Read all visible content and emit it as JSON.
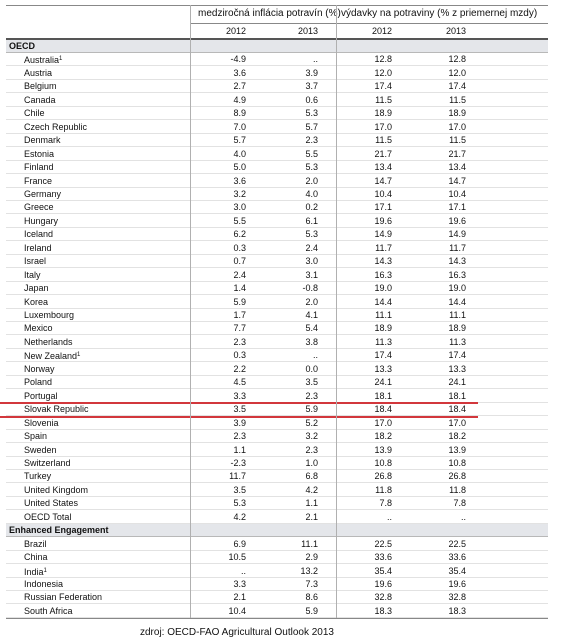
{
  "header": {
    "groups": [
      "medziročná inflácia potravín (%)",
      "výdavky na potraviny (% z priemernej mzdy)"
    ],
    "years": [
      "2012",
      "2013",
      "2012",
      "2013"
    ]
  },
  "sections": [
    {
      "title": "OECD",
      "rows": [
        {
          "name": "Australia",
          "sup": "1",
          "values": [
            "-4.9",
            "..",
            "12.8",
            "12.8"
          ]
        },
        {
          "name": "Austria",
          "values": [
            "3.6",
            "3.9",
            "12.0",
            "12.0"
          ]
        },
        {
          "name": "Belgium",
          "values": [
            "2.7",
            "3.7",
            "17.4",
            "17.4"
          ]
        },
        {
          "name": "Canada",
          "values": [
            "4.9",
            "0.6",
            "11.5",
            "11.5"
          ]
        },
        {
          "name": "Chile",
          "values": [
            "8.9",
            "5.3",
            "18.9",
            "18.9"
          ]
        },
        {
          "name": "Czech Republic",
          "values": [
            "7.0",
            "5.7",
            "17.0",
            "17.0"
          ]
        },
        {
          "name": "Denmark",
          "values": [
            "5.7",
            "2.3",
            "11.5",
            "11.5"
          ]
        },
        {
          "name": "Estonia",
          "values": [
            "4.0",
            "5.5",
            "21.7",
            "21.7"
          ]
        },
        {
          "name": "Finland",
          "values": [
            "5.0",
            "5.3",
            "13.4",
            "13.4"
          ]
        },
        {
          "name": "France",
          "values": [
            "3.6",
            "2.0",
            "14.7",
            "14.7"
          ]
        },
        {
          "name": "Germany",
          "values": [
            "3.2",
            "4.0",
            "10.4",
            "10.4"
          ]
        },
        {
          "name": "Greece",
          "values": [
            "3.0",
            "0.2",
            "17.1",
            "17.1"
          ]
        },
        {
          "name": "Hungary",
          "values": [
            "5.5",
            "6.1",
            "19.6",
            "19.6"
          ]
        },
        {
          "name": "Iceland",
          "values": [
            "6.2",
            "5.3",
            "14.9",
            "14.9"
          ]
        },
        {
          "name": "Ireland",
          "values": [
            "0.3",
            "2.4",
            "11.7",
            "11.7"
          ]
        },
        {
          "name": "Israel",
          "values": [
            "0.7",
            "3.0",
            "14.3",
            "14.3"
          ]
        },
        {
          "name": "Italy",
          "values": [
            "2.4",
            "3.1",
            "16.3",
            "16.3"
          ]
        },
        {
          "name": "Japan",
          "values": [
            "1.4",
            "-0.8",
            "19.0",
            "19.0"
          ]
        },
        {
          "name": "Korea",
          "values": [
            "5.9",
            "2.0",
            "14.4",
            "14.4"
          ]
        },
        {
          "name": "Luxembourg",
          "values": [
            "1.7",
            "4.1",
            "11.1",
            "11.1"
          ]
        },
        {
          "name": "Mexico",
          "values": [
            "7.7",
            "5.4",
            "18.9",
            "18.9"
          ]
        },
        {
          "name": "Netherlands",
          "values": [
            "2.3",
            "3.8",
            "11.3",
            "11.3"
          ]
        },
        {
          "name": "New Zealand",
          "sup": "1",
          "values": [
            "0.3",
            "..",
            "17.4",
            "17.4"
          ]
        },
        {
          "name": "Norway",
          "values": [
            "2.2",
            "0.0",
            "13.3",
            "13.3"
          ]
        },
        {
          "name": "Poland",
          "values": [
            "4.5",
            "3.5",
            "24.1",
            "24.1"
          ]
        },
        {
          "name": "Portugal",
          "values": [
            "3.3",
            "2.3",
            "18.1",
            "18.1"
          ]
        },
        {
          "name": "Slovak Republic",
          "highlight": true,
          "values": [
            "3.5",
            "5.9",
            "18.4",
            "18.4"
          ]
        },
        {
          "name": "Slovenia",
          "values": [
            "3.9",
            "5.2",
            "17.0",
            "17.0"
          ]
        },
        {
          "name": "Spain",
          "values": [
            "2.3",
            "3.2",
            "18.2",
            "18.2"
          ]
        },
        {
          "name": "Sweden",
          "values": [
            "1.1",
            "2.3",
            "13.9",
            "13.9"
          ]
        },
        {
          "name": "Switzerland",
          "values": [
            "-2.3",
            "1.0",
            "10.8",
            "10.8"
          ]
        },
        {
          "name": "Turkey",
          "values": [
            "11.7",
            "6.8",
            "26.8",
            "26.8"
          ]
        },
        {
          "name": "United Kingdom",
          "values": [
            "3.5",
            "4.2",
            "11.8",
            "11.8"
          ]
        },
        {
          "name": "United States",
          "values": [
            "5.3",
            "1.1",
            "7.8",
            "7.8"
          ]
        },
        {
          "name": "OECD Total",
          "values": [
            "4.2",
            "2.1",
            "..",
            ".."
          ]
        }
      ]
    },
    {
      "title": "Enhanced Engagement",
      "rows": [
        {
          "name": "Brazil",
          "values": [
            "6.9",
            "11.1",
            "22.5",
            "22.5"
          ]
        },
        {
          "name": "China",
          "values": [
            "10.5",
            "2.9",
            "33.6",
            "33.6"
          ]
        },
        {
          "name": "India",
          "sup": "1",
          "values": [
            "..",
            "13.2",
            "35.4",
            "35.4"
          ]
        },
        {
          "name": "Indonesia",
          "values": [
            "3.3",
            "7.3",
            "19.6",
            "19.6"
          ]
        },
        {
          "name": "Russian Federation",
          "values": [
            "2.1",
            "8.6",
            "32.8",
            "32.8"
          ]
        },
        {
          "name": "South Africa",
          "values": [
            "10.4",
            "5.9",
            "18.3",
            "18.3"
          ]
        }
      ]
    }
  ],
  "footer": "zdroj: OECD-FAO Agricultural Outlook 2013"
}
